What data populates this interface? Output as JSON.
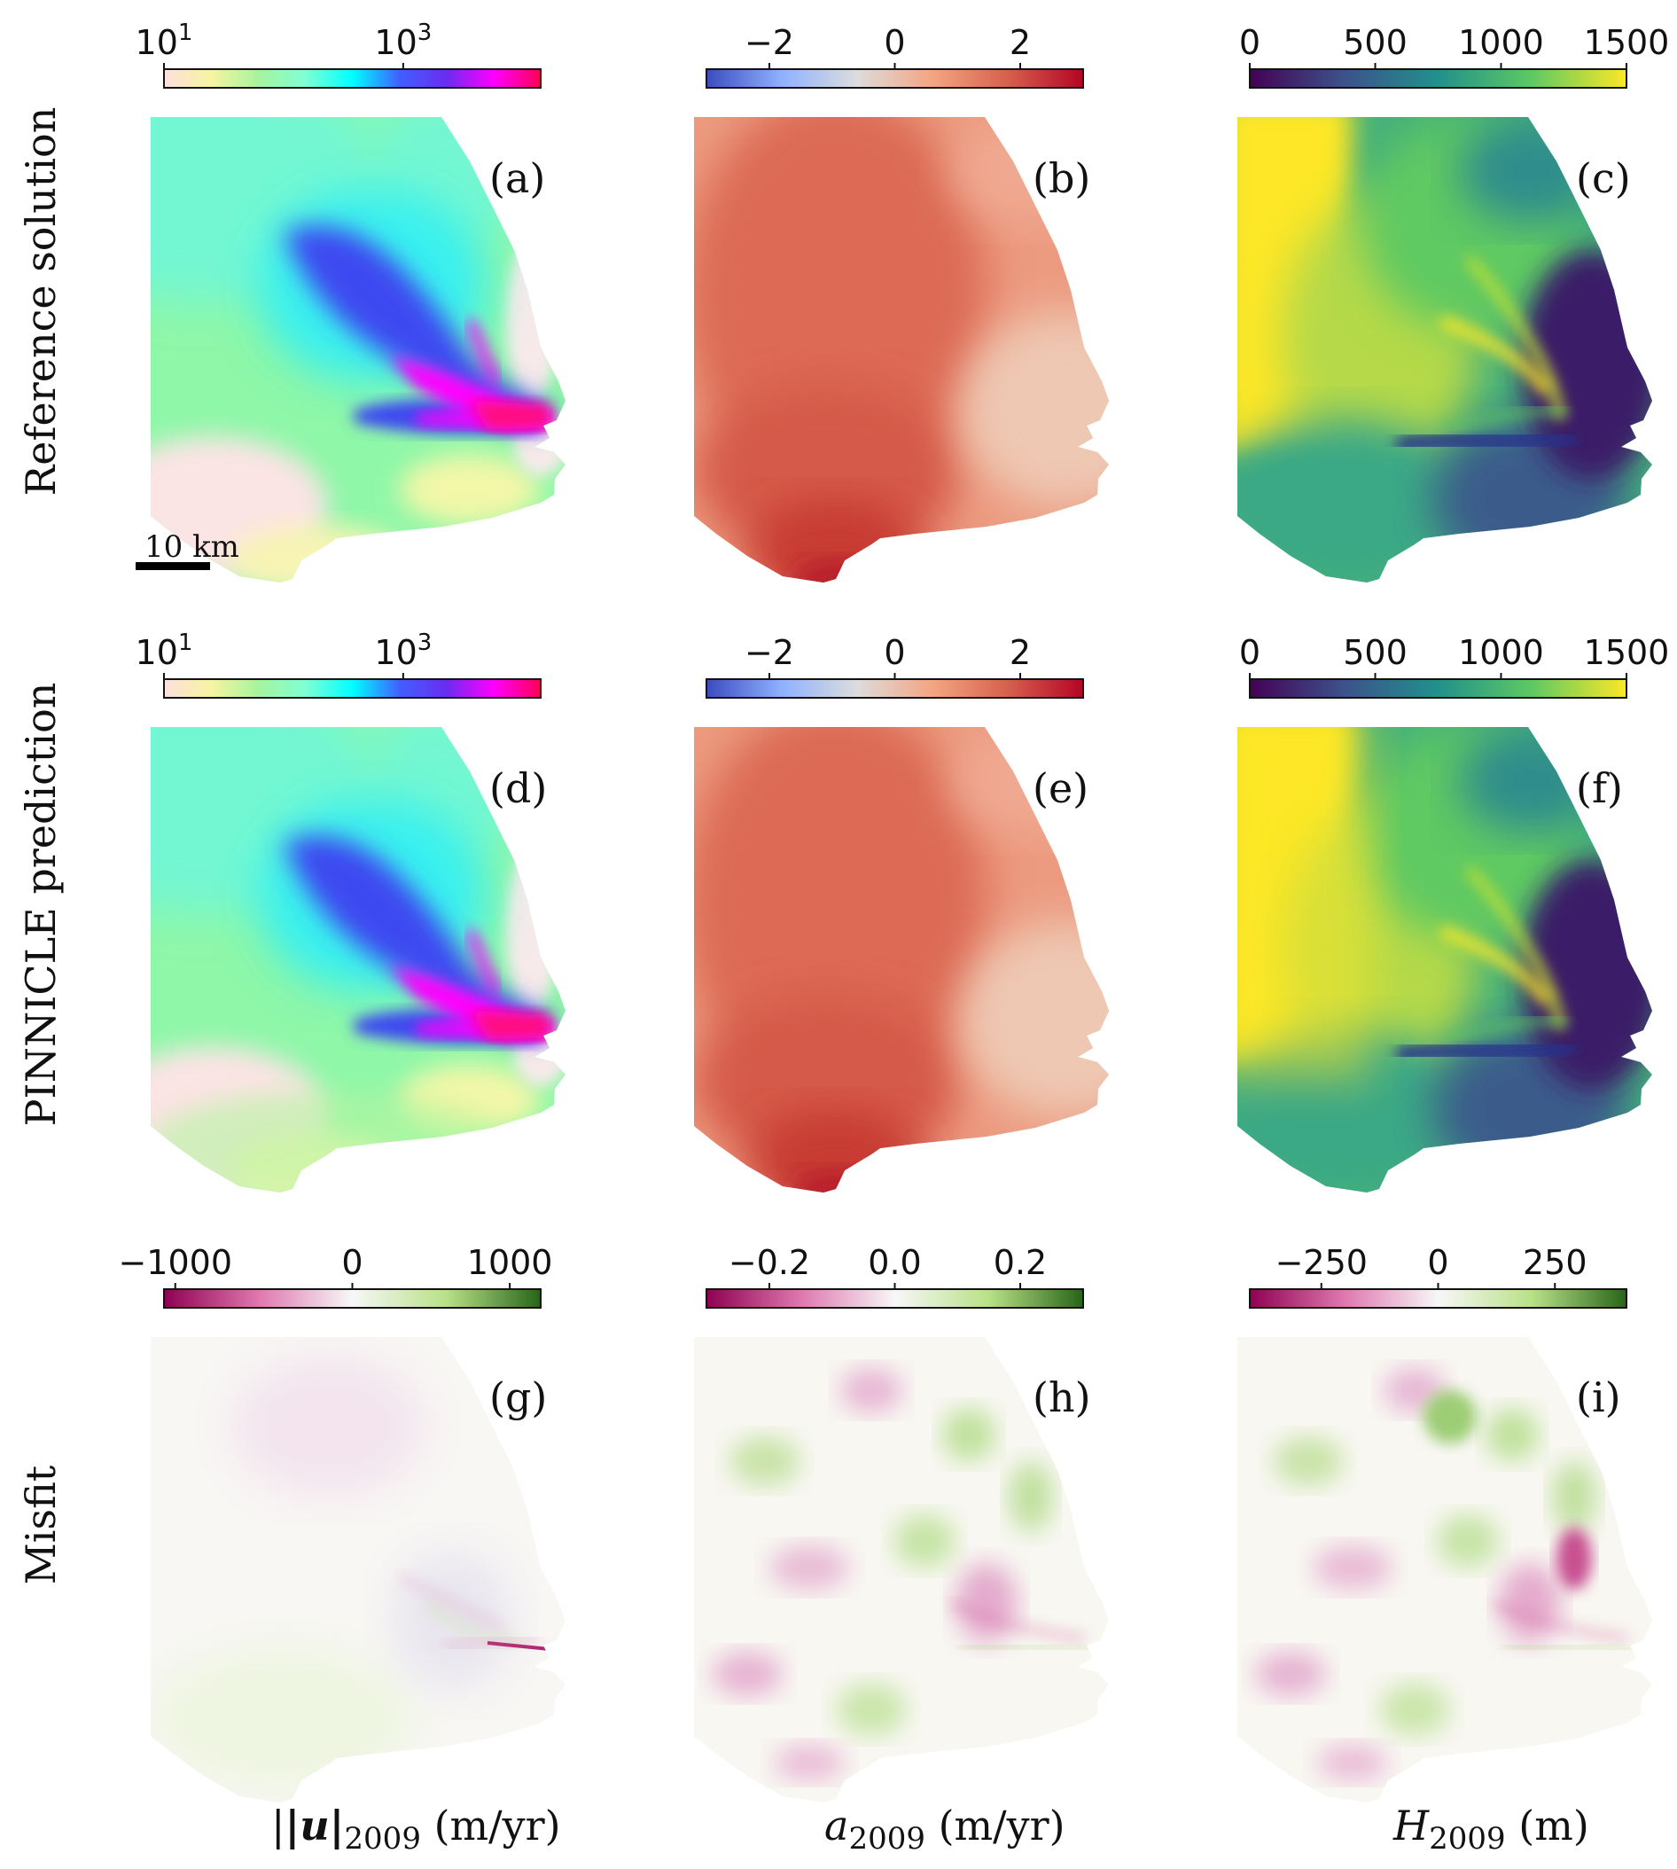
{
  "figure": {
    "row_labels": [
      "Reference solution",
      "PINNICLE prediction",
      "Misfit"
    ],
    "column_labels": [
      {
        "main": "|u|",
        "sub": "2009",
        "unit": " (m/yr)"
      },
      {
        "main": "a",
        "sub": "2009",
        "unit": " (m/yr)"
      },
      {
        "main": "H",
        "sub": "2009",
        "unit": " (m)"
      }
    ],
    "panel_labels": [
      "(a)",
      "(b)",
      "(c)",
      "(d)",
      "(e)",
      "(f)",
      "(g)",
      "(h)",
      "(i)"
    ],
    "scale_bar": "10 km",
    "colorbars": [
      {
        "id": "speed-ref",
        "ticks": [
          {
            "base": "10",
            "exp": "1"
          },
          {
            "base": "10",
            "exp": "3"
          }
        ],
        "colors": [
          "#fde0dd",
          "#f7f4a0",
          "#a7f49e",
          "#7fffd4",
          "#00ffff",
          "#4060ff",
          "#6a2cf0",
          "#ff00ff",
          "#ff0055"
        ]
      },
      {
        "id": "smb-ref",
        "ticks": [
          "−2",
          "0",
          "2"
        ],
        "colors": [
          "#3b4cc0",
          "#8fb1fe",
          "#dddcdc",
          "#f4a582",
          "#d6604d",
          "#b40426"
        ]
      },
      {
        "id": "thick-ref",
        "ticks": [
          "0",
          "500",
          "1000",
          "1500"
        ],
        "colors": [
          "#440154",
          "#3b528b",
          "#21918c",
          "#5ec962",
          "#fde725"
        ]
      },
      {
        "id": "speed-pred",
        "ticks": [
          {
            "base": "10",
            "exp": "1"
          },
          {
            "base": "10",
            "exp": "3"
          }
        ],
        "colors": [
          "#fde0dd",
          "#f7f4a0",
          "#a7f49e",
          "#7fffd4",
          "#00ffff",
          "#4060ff",
          "#6a2cf0",
          "#ff00ff",
          "#ff0055"
        ]
      },
      {
        "id": "smb-pred",
        "ticks": [
          "−2",
          "0",
          "2"
        ],
        "colors": [
          "#3b4cc0",
          "#8fb1fe",
          "#dddcdc",
          "#f4a582",
          "#d6604d",
          "#b40426"
        ]
      },
      {
        "id": "thick-pred",
        "ticks": [
          "0",
          "500",
          "1000",
          "1500"
        ],
        "colors": [
          "#440154",
          "#3b528b",
          "#21918c",
          "#5ec962",
          "#fde725"
        ]
      },
      {
        "id": "speed-misfit",
        "ticks": [
          "−1000",
          "0",
          "1000"
        ],
        "colors": [
          "#8e0152",
          "#de77ae",
          "#f7f7f7",
          "#b8e186",
          "#276419"
        ]
      },
      {
        "id": "smb-misfit",
        "ticks": [
          "−0.2",
          "0.0",
          "0.2"
        ],
        "colors": [
          "#8e0152",
          "#de77ae",
          "#f7f7f7",
          "#b8e186",
          "#276419"
        ]
      },
      {
        "id": "thick-misfit",
        "ticks": [
          "−250",
          "0",
          "250"
        ],
        "colors": [
          "#8e0152",
          "#de77ae",
          "#f7f7f7",
          "#b8e186",
          "#276419"
        ]
      }
    ]
  }
}
